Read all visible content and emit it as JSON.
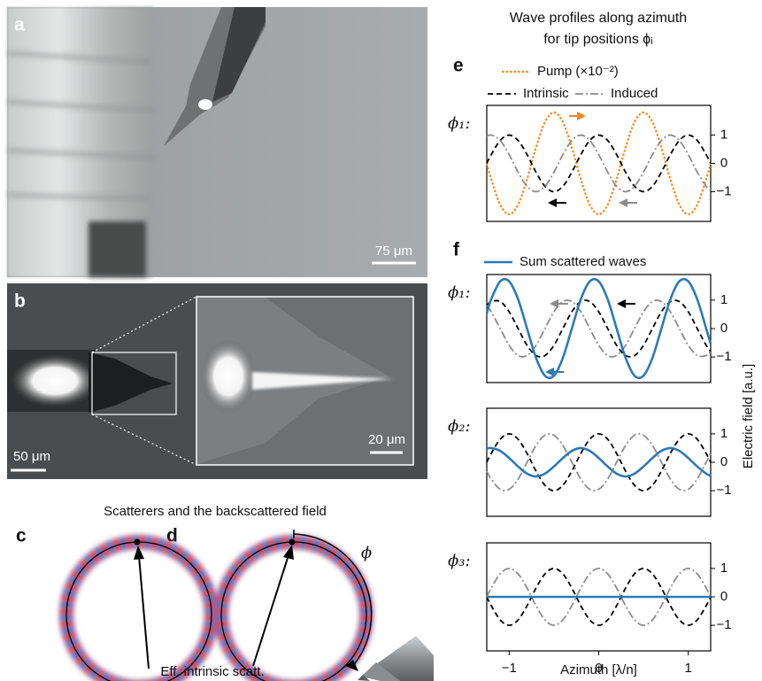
{
  "photo_a": {
    "label": "a",
    "scale_bar": "75 μm"
  },
  "photo_b": {
    "label": "b",
    "scale_bar": "50 μm",
    "inset_scale_bar": "20 μm"
  },
  "diagram": {
    "title": "Scatterers and the backscattered field",
    "label_c": "c",
    "label_d": "d",
    "angle": "ϕ",
    "arrow_label": "Eff. intrinsic scatt."
  },
  "chart_data": [
    {
      "type": "line",
      "panel": "e",
      "title": [
        "Wave profiles along azimuth",
        "for tip positions ϕᵢ"
      ],
      "subplot_label": "ϕ₁:",
      "x": [
        -1.25,
        -1.2,
        -1.1,
        -1,
        -0.9,
        -0.8,
        -0.7,
        -0.6,
        -0.5,
        -0.4,
        -0.3,
        -0.2,
        -0.1,
        0,
        0.1,
        0.2,
        0.3,
        0.4,
        0.5,
        0.6,
        0.7,
        0.8,
        0.9,
        1,
        1.1,
        1.2,
        1.25
      ],
      "xlim": [
        -1.25,
        1.25
      ],
      "ylim": [
        -2.05,
        2.05
      ],
      "yticks": [
        1,
        0,
        {
          "value": -1,
          "label": "−1"
        }
      ],
      "series": [
        {
          "name": "Pump (×10⁻²)",
          "color": "#f28a1e",
          "style": "dotted",
          "values": [
            0,
            -0.56,
            -1.46,
            -1.8,
            -1.46,
            -0.56,
            0.56,
            1.46,
            1.8,
            1.46,
            0.56,
            -0.56,
            -1.46,
            -1.8,
            -1.46,
            -0.56,
            0.56,
            1.46,
            1.8,
            1.46,
            0.56,
            -0.56,
            -1.46,
            -1.8,
            -1.46,
            -0.56,
            0
          ]
        },
        {
          "name": "Intrinsic",
          "color": "#000000",
          "style": "dashed",
          "values": [
            0,
            0.31,
            0.81,
            1,
            0.81,
            0.31,
            -0.31,
            -0.81,
            -1,
            -0.81,
            -0.31,
            0.31,
            0.81,
            1,
            0.81,
            0.31,
            -0.31,
            -0.81,
            -1,
            -0.81,
            -0.31,
            0.31,
            0.81,
            1,
            0.81,
            0.31,
            0
          ]
        },
        {
          "name": "Induced",
          "color": "#8c8c8c",
          "style": "dashdot",
          "values": [
            0.95,
            1,
            0.81,
            0.31,
            -0.31,
            -0.81,
            -1,
            -0.81,
            -0.31,
            0.31,
            0.81,
            1,
            0.81,
            0.31,
            -0.31,
            -0.81,
            -1,
            -0.81,
            -0.31,
            0.31,
            0.81,
            1,
            0.81,
            0.31,
            -0.31,
            -0.81,
            -0.95
          ]
        }
      ]
    },
    {
      "type": "line",
      "panel": "f",
      "subplot_label": "ϕ₁:",
      "x": [
        -1.25,
        -1.2,
        -1.1,
        -1,
        -0.9,
        -0.8,
        -0.7,
        -0.6,
        -0.5,
        -0.4,
        -0.3,
        -0.2,
        -0.1,
        0,
        0.1,
        0.2,
        0.3,
        0.4,
        0.5,
        0.6,
        0.7,
        0.8,
        0.9,
        1,
        1.1,
        1.2,
        1.25
      ],
      "xlim": [
        -1.25,
        1.25
      ],
      "ylim": [
        -1.9,
        1.9
      ],
      "yticks": [
        1,
        0,
        {
          "value": -1,
          "label": "−1"
        }
      ],
      "series": [
        {
          "color": "#000000",
          "style": "dashed",
          "values": [
            0.81,
            0.95,
            0.95,
            0.59,
            0,
            -0.59,
            -0.95,
            -0.95,
            -0.59,
            0,
            0.59,
            0.95,
            0.95,
            0.59,
            0,
            -0.59,
            -0.95,
            -0.95,
            -0.59,
            0,
            0.59,
            0.95,
            0.95,
            0.59,
            0,
            -0.59,
            -0.81
          ]
        },
        {
          "color": "#8c8c8c",
          "style": "dashdot",
          "values": [
            0.81,
            0.59,
            0,
            -0.59,
            -0.95,
            -0.95,
            -0.59,
            0,
            0.59,
            0.95,
            0.95,
            0.59,
            0,
            -0.59,
            -0.95,
            -0.95,
            -0.59,
            0,
            0.59,
            0.95,
            0.95,
            0.59,
            0,
            -0.59,
            -0.95,
            -0.95,
            -0.81
          ]
        },
        {
          "name": "Sum scattered waves",
          "color": "#2a7ab8",
          "style": "solid",
          "values": [
            0.54,
            1.03,
            1.66,
            1.66,
            1.03,
            0,
            -1.03,
            -1.66,
            -1.66,
            -1.03,
            0,
            1.03,
            1.66,
            1.66,
            1.03,
            0,
            -1.03,
            -1.66,
            -1.66,
            -1.03,
            0,
            1.03,
            1.66,
            1.66,
            1.03,
            0,
            -0.54
          ]
        }
      ]
    },
    {
      "type": "line",
      "subplot_label": "ϕ₂:",
      "ylabel": "Electric field [a.u.]",
      "x": [
        -1.25,
        -1.2,
        -1.1,
        -1,
        -0.9,
        -0.8,
        -0.7,
        -0.6,
        -0.5,
        -0.4,
        -0.3,
        -0.2,
        -0.1,
        0,
        0.1,
        0.2,
        0.3,
        0.4,
        0.5,
        0.6,
        0.7,
        0.8,
        0.9,
        1,
        1.1,
        1.2,
        1.25
      ],
      "xlim": [
        -1.25,
        1.25
      ],
      "ylim": [
        -1.9,
        1.9
      ],
      "yticks": [
        1,
        0,
        {
          "value": -1,
          "label": "−1"
        }
      ],
      "series": [
        {
          "color": "#000000",
          "style": "dashed",
          "values": [
            0,
            0.31,
            0.81,
            1,
            0.81,
            0.31,
            -0.31,
            -0.81,
            -1,
            -0.81,
            -0.31,
            0.31,
            0.81,
            1,
            0.81,
            0.31,
            -0.31,
            -0.81,
            -1,
            -0.81,
            -0.31,
            0.31,
            0.81,
            1,
            0.81,
            0.31,
            0
          ]
        },
        {
          "color": "#8c8c8c",
          "style": "dashdot",
          "values": [
            -0.31,
            -0.59,
            -0.95,
            -0.95,
            -0.59,
            0,
            0.59,
            0.95,
            0.95,
            0.59,
            0,
            -0.59,
            -0.95,
            -0.95,
            -0.59,
            0,
            0.59,
            0.95,
            0.95,
            0.59,
            0,
            -0.59,
            -0.95,
            -0.95,
            -0.59,
            0,
            0.31
          ]
        },
        {
          "color": "#2a7ab8",
          "style": "solid",
          "values": [
            0.48,
            0.5,
            0.4,
            0.15,
            -0.15,
            -0.4,
            -0.5,
            -0.4,
            -0.15,
            0.15,
            0.4,
            0.5,
            0.4,
            0.15,
            -0.15,
            -0.4,
            -0.5,
            -0.4,
            -0.15,
            0.15,
            0.4,
            0.5,
            0.4,
            0.15,
            -0.15,
            -0.4,
            -0.48
          ]
        }
      ]
    },
    {
      "type": "line",
      "subplot_label": "ϕ₃:",
      "xlabel": "Azimuth [λ/n]",
      "x": [
        -1.25,
        -1.2,
        -1.1,
        -1,
        -0.9,
        -0.8,
        -0.7,
        -0.6,
        -0.5,
        -0.4,
        -0.3,
        -0.2,
        -0.1,
        0,
        0.1,
        0.2,
        0.3,
        0.4,
        0.5,
        0.6,
        0.7,
        0.8,
        0.9,
        1,
        1.1,
        1.2,
        1.25
      ],
      "xlim": [
        -1.25,
        1.25
      ],
      "ylim": [
        -1.9,
        1.9
      ],
      "xticks": [
        {
          "value": -1,
          "label": "−1"
        },
        0,
        1
      ],
      "yticks": [
        1,
        0,
        {
          "value": -1,
          "label": "−1"
        }
      ],
      "series": [
        {
          "color": "#000000",
          "style": "dashed",
          "values": [
            0,
            -0.31,
            -0.81,
            -1,
            -0.81,
            -0.31,
            0.31,
            0.81,
            1,
            0.81,
            0.31,
            -0.31,
            -0.81,
            -1,
            -0.81,
            -0.31,
            0.31,
            0.81,
            1,
            0.81,
            0.31,
            -0.31,
            -0.81,
            -1,
            -0.81,
            -0.31,
            0
          ]
        },
        {
          "color": "#8c8c8c",
          "style": "dashdot",
          "values": [
            0,
            0.31,
            0.81,
            1,
            0.81,
            0.31,
            -0.31,
            -0.81,
            -1,
            -0.81,
            -0.31,
            0.31,
            0.81,
            1,
            0.81,
            0.31,
            -0.31,
            -0.81,
            -1,
            -0.81,
            -0.31,
            0.31,
            0.81,
            1,
            0.81,
            0.31,
            0
          ]
        },
        {
          "color": "#2a7ab8",
          "style": "solid",
          "values": [
            0,
            0,
            0,
            0,
            0,
            0,
            0,
            0,
            0,
            0,
            0,
            0,
            0,
            0,
            0,
            0,
            0,
            0,
            0,
            0,
            0,
            0,
            0,
            0,
            0,
            0,
            0
          ]
        }
      ]
    }
  ]
}
